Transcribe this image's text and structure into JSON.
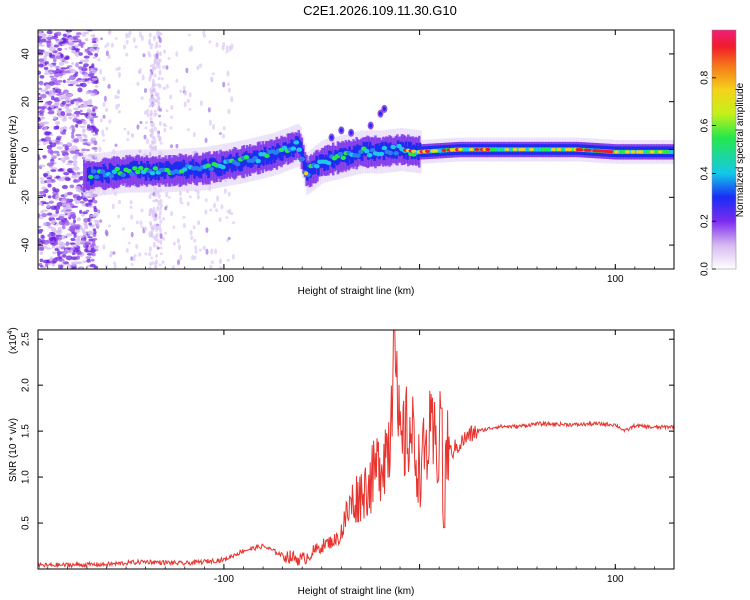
{
  "title": "C2E1.2026.109.11.30.G10",
  "colors": {
    "snr_line": "#e8342e",
    "frame": "#000000"
  },
  "chart_data": [
    {
      "type": "heatmap",
      "name": "doppler-spectrum",
      "xlabel": "Height of straight line (km)",
      "ylabel": "Frequency (Hz)",
      "xlim": [
        -195,
        130
      ],
      "ylim": [
        -50,
        50
      ],
      "xticks": [
        -100,
        0,
        100
      ],
      "xtick_labels": [
        "-100",
        "",
        "100"
      ],
      "yticks": [
        -40,
        -20,
        0,
        20,
        40
      ],
      "ytick_labels": [
        "-40",
        "-20",
        "0",
        "20",
        "40"
      ],
      "colorbar": {
        "label": "Normalized spectral amplitude",
        "range": [
          0,
          1
        ],
        "ticks": [
          0.0,
          0.2,
          0.4,
          0.6,
          0.8
        ],
        "tick_labels": [
          "0.0",
          "0.2",
          "0.4",
          "0.6",
          "0.8"
        ]
      },
      "ridge": {
        "x": [
          -170,
          -150,
          -130,
          -110,
          -90,
          -75,
          -62,
          -58,
          -50,
          -40,
          -30,
          -20,
          -10,
          0,
          20,
          40,
          60,
          80,
          100,
          130
        ],
        "freq": [
          -11,
          -9,
          -9,
          -8,
          -5,
          -2,
          2,
          -10,
          -5,
          -3,
          -1,
          -1,
          0,
          -1,
          0,
          0,
          0,
          0,
          -1,
          -1
        ]
      }
    },
    {
      "type": "line",
      "name": "snr",
      "xlabel": "Height of straight line (km)",
      "ylabel": "SNR (10 * v/v)",
      "scale_label": "(x10",
      "scale_exponent": "4",
      "xlim": [
        -195,
        130
      ],
      "ylim": [
        0,
        2.6
      ],
      "xticks": [
        -100,
        0,
        100
      ],
      "xtick_labels": [
        "-100",
        "",
        "100"
      ],
      "yticks": [
        0.5,
        1.0,
        1.5,
        2.0,
        2.5
      ],
      "ytick_labels": [
        "0.5",
        "1.0",
        "1.5",
        "2.0",
        "2.5"
      ],
      "series": [
        {
          "name": "SNR",
          "x": [
            -195,
            -160,
            -140,
            -120,
            -100,
            -90,
            -80,
            -70,
            -60,
            -50,
            -40,
            -35,
            -30,
            -25,
            -20,
            -15,
            -13,
            -12,
            -10,
            -5,
            0,
            5,
            10,
            11,
            12,
            13,
            15,
            20,
            25,
            30,
            40,
            50,
            60,
            80,
            90,
            100,
            105,
            110,
            120,
            130
          ],
          "y": [
            0.04,
            0.05,
            0.08,
            0.06,
            0.1,
            0.2,
            0.25,
            0.15,
            0.1,
            0.25,
            0.35,
            0.6,
            0.7,
            0.8,
            1.0,
            1.2,
            2.6,
            1.6,
            1.1,
            1.3,
            0.9,
            1.2,
            1.1,
            1.7,
            0.5,
            0.9,
            1.25,
            1.35,
            1.45,
            1.5,
            1.55,
            1.55,
            1.58,
            1.57,
            1.58,
            1.57,
            1.5,
            1.56,
            1.54,
            1.55
          ]
        }
      ]
    }
  ]
}
